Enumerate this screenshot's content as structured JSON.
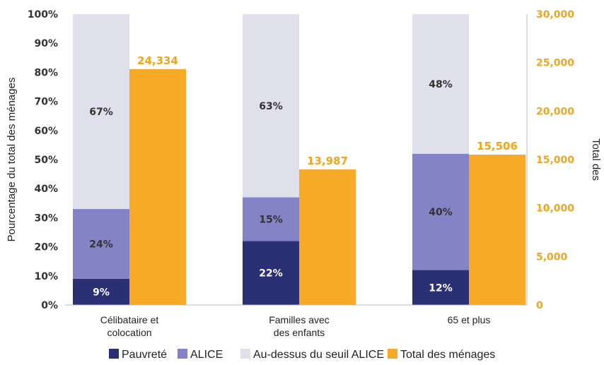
{
  "chart_data": {
    "type": "bar",
    "categories": [
      [
        "Célibataire et",
        "colocation"
      ],
      [
        "Familles avec",
        "des enfants"
      ],
      [
        "65 et plus"
      ]
    ],
    "series": [
      {
        "name": "Pauvreté",
        "values": [
          9,
          22,
          12
        ],
        "labels": [
          "9%",
          "22%",
          "12%"
        ],
        "color": "#2b2f73",
        "axis": "left",
        "stack": "pct"
      },
      {
        "name": "ALICE",
        "values": [
          24,
          15,
          40
        ],
        "labels": [
          "24%",
          "15%",
          "40%"
        ],
        "color": "#8583c7",
        "axis": "left",
        "stack": "pct"
      },
      {
        "name": "Au-dessus du seuil ALICE",
        "values": [
          67,
          63,
          48
        ],
        "labels": [
          "67%",
          "63%",
          "48%"
        ],
        "color": "#e0dfec",
        "axis": "left",
        "stack": "pct"
      },
      {
        "name": "Total des ménages",
        "values": [
          24334,
          13987,
          15506
        ],
        "labels": [
          "24,334",
          "13,987",
          "15,506"
        ],
        "color": "#f7a928",
        "axis": "right"
      }
    ],
    "ylabel": "Pourcentage du total des ménages",
    "y2label": "Total des",
    "ylim": [
      0,
      100
    ],
    "y2lim": [
      0,
      30000
    ],
    "yticks": [
      "0%",
      "10%",
      "20%",
      "30%",
      "40%",
      "50%",
      "60%",
      "70%",
      "80%",
      "90%",
      "100%"
    ],
    "y2ticks": [
      "0",
      "5,000",
      "10,000",
      "15,000",
      "20,000",
      "25,000",
      "30,000"
    ],
    "legend_position": "bottom",
    "grid": false
  }
}
